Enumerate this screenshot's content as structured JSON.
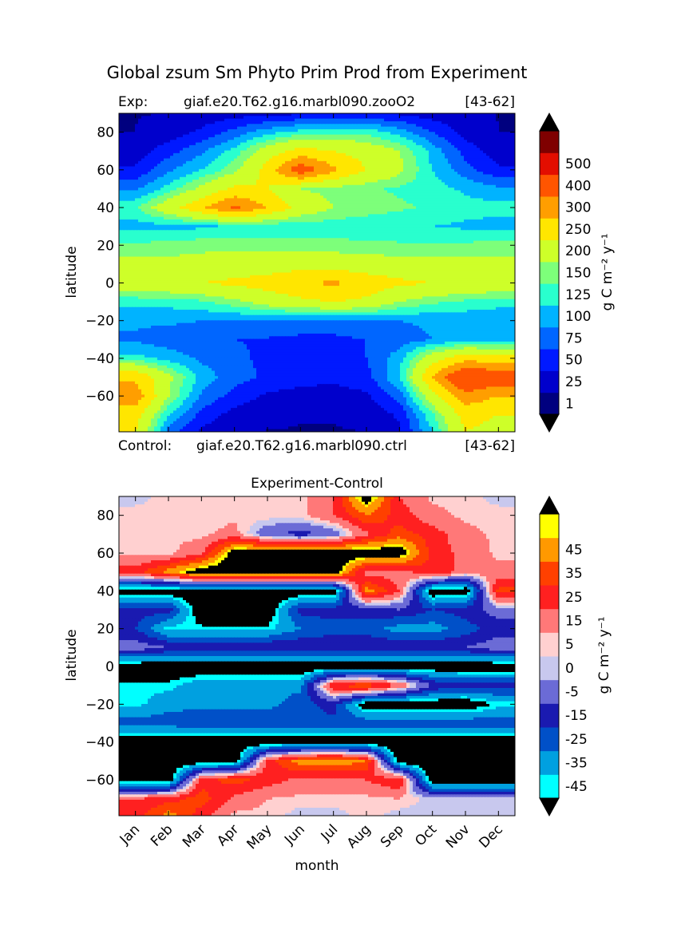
{
  "figure": {
    "suptitle": "Global zsum Sm Phyto Prim Prod from Experiment",
    "exp_prefix": "Exp:",
    "exp_case": "giaf.e20.T62.g16.marbl090.zooO2",
    "exp_years": "[43-62]",
    "ctrl_prefix": "Control:",
    "ctrl_case": "giaf.e20.T62.g16.marbl090.ctrl",
    "ctrl_years": "[43-62]",
    "diff_title": "Experiment-Control"
  },
  "chart_data": [
    {
      "type": "heatmap",
      "title": "",
      "xlabel": "",
      "ylabel": "latitude",
      "x_categories": [
        "Jan",
        "Feb",
        "Mar",
        "Apr",
        "May",
        "Jun",
        "Jul",
        "Aug",
        "Sep",
        "Oct",
        "Nov",
        "Dec"
      ],
      "x_ticks_shown": false,
      "y_ticks": [
        -60,
        -40,
        -20,
        0,
        20,
        40,
        60,
        80
      ],
      "ylim": [
        -79,
        90
      ],
      "colorbar": {
        "label": "g C m⁻² y⁻¹",
        "levels": [
          1,
          25,
          50,
          75,
          100,
          125,
          150,
          200,
          250,
          300,
          400,
          500
        ],
        "tick_labels": [
          "1",
          "25",
          "50",
          "75",
          "100",
          "125",
          "150",
          "200",
          "250",
          "300",
          "400",
          "500"
        ],
        "colors": [
          "#00007f",
          "#0000cc",
          "#0019ff",
          "#0066ff",
          "#00b3ff",
          "#29ffce",
          "#7dff7a",
          "#ceff29",
          "#ffe600",
          "#ff9e00",
          "#ff5500",
          "#e30e00",
          "#7f0000"
        ],
        "under_color": "#000000",
        "over_color": "#000000",
        "extend": "both"
      },
      "latitudes": [
        90,
        80,
        70,
        60,
        50,
        40,
        30,
        20,
        10,
        0,
        -10,
        -20,
        -30,
        -40,
        -50,
        -60,
        -70,
        -79
      ],
      "values": [
        [
          0.5,
          1,
          8,
          12,
          16,
          20,
          24,
          25,
          20,
          10,
          5,
          0.5
        ],
        [
          1,
          10,
          30,
          60,
          90,
          110,
          120,
          115,
          90,
          50,
          15,
          1
        ],
        [
          8,
          40,
          70,
          110,
          170,
          220,
          200,
          180,
          150,
          90,
          40,
          10
        ],
        [
          30,
          70,
          100,
          140,
          220,
          340,
          260,
          200,
          160,
          100,
          60,
          30
        ],
        [
          70,
          110,
          160,
          210,
          200,
          150,
          140,
          130,
          120,
          110,
          95,
          80
        ],
        [
          120,
          180,
          240,
          310,
          250,
          180,
          150,
          140,
          130,
          120,
          110,
          110
        ],
        [
          90,
          90,
          95,
          100,
          105,
          110,
          110,
          105,
          100,
          100,
          95,
          90
        ],
        [
          130,
          135,
          140,
          140,
          140,
          135,
          135,
          130,
          130,
          130,
          130,
          135
        ],
        [
          160,
          160,
          165,
          170,
          175,
          180,
          175,
          170,
          165,
          160,
          160,
          160
        ],
        [
          180,
          190,
          200,
          210,
          220,
          240,
          260,
          230,
          210,
          200,
          190,
          185
        ],
        [
          110,
          110,
          120,
          140,
          170,
          190,
          200,
          190,
          150,
          130,
          120,
          110
        ],
        [
          80,
          80,
          75,
          75,
          70,
          65,
          65,
          70,
          75,
          80,
          80,
          80
        ],
        [
          70,
          60,
          55,
          50,
          48,
          45,
          45,
          50,
          60,
          75,
          85,
          80
        ],
        [
          110,
          90,
          70,
          55,
          45,
          40,
          40,
          50,
          90,
          180,
          230,
          220
        ],
        [
          240,
          160,
          90,
          60,
          45,
          35,
          30,
          40,
          100,
          250,
          380,
          340
        ],
        [
          280,
          150,
          70,
          40,
          20,
          15,
          15,
          20,
          60,
          180,
          280,
          250
        ],
        [
          220,
          100,
          40,
          15,
          5,
          2,
          2,
          5,
          30,
          120,
          220,
          200
        ],
        [
          200,
          60,
          20,
          2,
          0.5,
          0.2,
          0.2,
          1,
          20,
          100,
          200,
          180
        ]
      ]
    },
    {
      "type": "heatmap",
      "title": "Experiment-Control",
      "xlabel": "month",
      "ylabel": "latitude",
      "x_categories": [
        "Jan",
        "Feb",
        "Mar",
        "Apr",
        "May",
        "Jun",
        "Jul",
        "Aug",
        "Sep",
        "Oct",
        "Nov",
        "Dec"
      ],
      "y_ticks": [
        -60,
        -40,
        -20,
        0,
        20,
        40,
        60,
        80
      ],
      "ylim": [
        -79,
        90
      ],
      "colorbar": {
        "label": "g C m⁻² y⁻¹",
        "levels": [
          -50,
          -45,
          -35,
          -25,
          -15,
          -5,
          0,
          5,
          15,
          25,
          35,
          45,
          50
        ],
        "tick_labels": [
          "-45",
          "-35",
          "-25",
          "-15",
          "-5",
          "0",
          "5",
          "15",
          "25",
          "35",
          "45"
        ],
        "colors": [
          "#00ffff",
          "#00a0e0",
          "#0050c8",
          "#1a1ab0",
          "#6b6bd6",
          "#c8c8ee",
          "#ffd0d0",
          "#ff7878",
          "#ff2020",
          "#ff4000",
          "#ff9900",
          "#ffff00"
        ],
        "under_color": "#000000",
        "over_color": "#000000",
        "extend": "both"
      },
      "latitudes": [
        90,
        80,
        70,
        60,
        50,
        40,
        30,
        20,
        10,
        0,
        -10,
        -20,
        -30,
        -40,
        -50,
        -60,
        -70,
        -79
      ],
      "values": [
        [
          -3,
          3,
          3,
          3,
          3,
          3,
          15,
          60,
          15,
          3,
          3,
          -3
        ],
        [
          3,
          3,
          3,
          3,
          3,
          3,
          15,
          35,
          20,
          8,
          3,
          3
        ],
        [
          3,
          3,
          3,
          8,
          -12,
          -20,
          -12,
          12,
          30,
          20,
          8,
          3
        ],
        [
          3,
          3,
          12,
          60,
          60,
          60,
          60,
          60,
          60,
          20,
          12,
          3
        ],
        [
          20,
          40,
          60,
          60,
          60,
          60,
          60,
          10,
          10,
          25,
          10,
          8
        ],
        [
          -60,
          -60,
          -60,
          -60,
          -60,
          -60,
          -60,
          40,
          15,
          -60,
          -60,
          30
        ],
        [
          -20,
          -20,
          -60,
          -60,
          -60,
          -20,
          -20,
          -20,
          -15,
          -25,
          -20,
          -10
        ],
        [
          -25,
          -48,
          -48,
          -48,
          -48,
          -35,
          -30,
          -30,
          -40,
          -40,
          -30,
          -20
        ],
        [
          -8,
          -15,
          -15,
          -15,
          -15,
          -15,
          -15,
          -15,
          -15,
          -15,
          -15,
          -8
        ],
        [
          -60,
          -60,
          -60,
          -60,
          -60,
          -60,
          -60,
          -60,
          -60,
          -60,
          -60,
          -60
        ],
        [
          -48,
          -48,
          -38,
          -38,
          -38,
          -38,
          25,
          35,
          15,
          -15,
          -20,
          -20
        ],
        [
          -48,
          -38,
          -38,
          -38,
          -38,
          -30,
          -20,
          -60,
          -60,
          -60,
          -60,
          -48
        ],
        [
          -30,
          -30,
          -28,
          -28,
          -28,
          -28,
          -28,
          -28,
          -28,
          -28,
          -28,
          -28
        ],
        [
          -60,
          -60,
          -60,
          -60,
          -60,
          -60,
          -60,
          -60,
          -60,
          -60,
          -60,
          -60
        ],
        [
          -60,
          -60,
          -60,
          -60,
          20,
          40,
          45,
          35,
          -60,
          -60,
          -60,
          -60
        ],
        [
          -60,
          -60,
          20,
          30,
          20,
          12,
          10,
          15,
          25,
          -60,
          -60,
          -60
        ],
        [
          15,
          20,
          30,
          12,
          5,
          3,
          3,
          3,
          5,
          -3,
          -3,
          -3
        ],
        [
          20,
          40,
          20,
          3,
          3,
          -3,
          -3,
          3,
          -3,
          -3,
          -3,
          -3
        ]
      ]
    }
  ]
}
